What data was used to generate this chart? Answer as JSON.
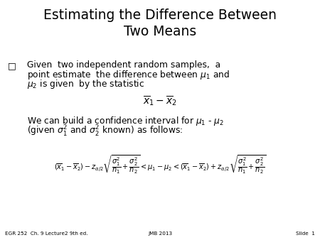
{
  "title": "Estimating the Difference Between\nTwo Means",
  "background_color": "#ffffff",
  "text_color": "#000000",
  "footer_left": "EGR 252  Ch. 9 Lecture2 9th ed.",
  "footer_center": "JMB 2013",
  "footer_right": "Slide  1"
}
